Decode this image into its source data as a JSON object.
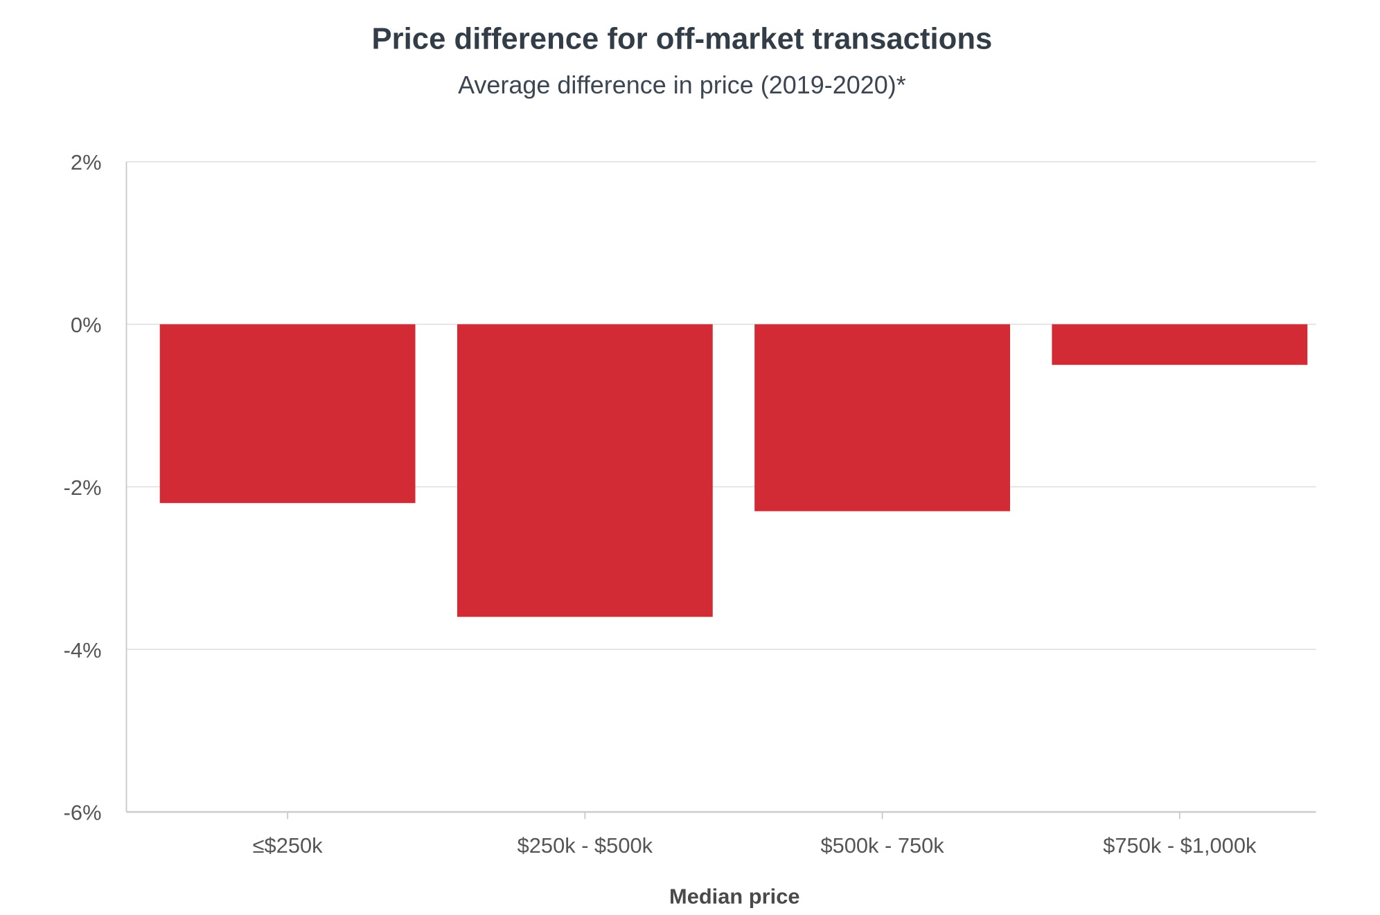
{
  "chart_data": {
    "type": "bar",
    "title": "Price difference for off-market transactions",
    "subtitle": "Average difference in price (2019-2020)*",
    "xlabel": "Median price",
    "ylabel": "",
    "categories": [
      "≤$250k",
      "$250k - $500k",
      "$500k - 750k",
      "$750k - $1,000k"
    ],
    "values": [
      -2.2,
      -3.6,
      -2.3,
      -0.5
    ],
    "unit": "%",
    "ylim": [
      -6,
      2
    ],
    "yticks": [
      2,
      0,
      -2,
      -4,
      -6
    ],
    "ytick_labels": [
      "2%",
      "0%",
      "-2%",
      "-4%",
      "-6%"
    ],
    "grid": true,
    "legend": "none",
    "colors": {
      "bar": "#d22b36",
      "grid": "#dddddd",
      "axis": "#cccccc"
    }
  }
}
